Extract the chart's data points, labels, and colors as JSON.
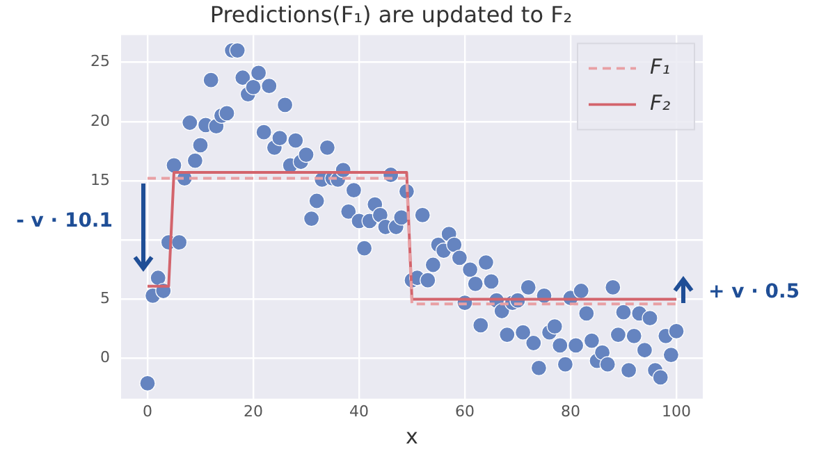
{
  "chart_data": {
    "type": "scatter",
    "title": "Predictions(F₁) are updated to F₂",
    "xlabel": "x",
    "xlim": [
      -5,
      105
    ],
    "ylim": [
      -3.4,
      27.3
    ],
    "xticks": [
      0,
      20,
      40,
      60,
      80,
      100
    ],
    "yticks": [
      0,
      5,
      {
        "value": 10,
        "label": null
      },
      15,
      20,
      25
    ],
    "grid": true,
    "legend": "top right",
    "annotations": [
      "- v · 10.1",
      "+ v · 0.5"
    ],
    "series": [
      {
        "type": "line",
        "name": "F₁",
        "color": "#e8a0a4",
        "line_style": "dashed",
        "marker": "none",
        "x": [
          0,
          49,
          50,
          100
        ],
        "values": [
          15.2,
          15.2,
          4.6,
          4.6
        ]
      },
      {
        "type": "line",
        "name": "F₂",
        "color": "#d3646c",
        "line_style": "solid",
        "marker": "none",
        "x": [
          0,
          4,
          5,
          49,
          50,
          100
        ],
        "values": [
          6.1,
          6.1,
          15.7,
          15.7,
          5.0,
          5.0
        ]
      },
      {
        "color": "#6584c0",
        "marker": "circle",
        "x": [
          0,
          1,
          2,
          3,
          4,
          5,
          6,
          7,
          8,
          9,
          10,
          11,
          12,
          13,
          14,
          15,
          16,
          17,
          18,
          19,
          20,
          21,
          22,
          23,
          24,
          25,
          26,
          27,
          28,
          29,
          30,
          31,
          32,
          33,
          34,
          35,
          36,
          37,
          38,
          39,
          40,
          41,
          42,
          43,
          44,
          45,
          46,
          47,
          48,
          49,
          50,
          51,
          52,
          53,
          54,
          55,
          56,
          57,
          58,
          59,
          60,
          61,
          62,
          63,
          64,
          65,
          66,
          67,
          68,
          69,
          70,
          71,
          72,
          73,
          74,
          75,
          76,
          77,
          78,
          79,
          80,
          81,
          82,
          83,
          84,
          85,
          86,
          87,
          88,
          89,
          90,
          91,
          92,
          93,
          94,
          95,
          96,
          97,
          98,
          99,
          100
        ],
        "values": [
          -2.1,
          5.3,
          6.8,
          5.7,
          9.8,
          16.3,
          9.8,
          15.2,
          19.9,
          16.7,
          18.0,
          19.7,
          23.5,
          19.6,
          20.5,
          20.7,
          26.0,
          26.0,
          23.7,
          22.3,
          22.9,
          24.1,
          19.1,
          23.0,
          17.8,
          18.6,
          21.4,
          16.3,
          18.4,
          16.6,
          17.2,
          11.8,
          13.3,
          15.1,
          17.8,
          15.2,
          15.1,
          15.9,
          12.4,
          14.2,
          11.6,
          9.3,
          11.6,
          13.0,
          12.1,
          11.1,
          15.5,
          11.1,
          11.9,
          14.1,
          6.6,
          6.8,
          12.1,
          6.6,
          7.9,
          9.6,
          9.1,
          10.5,
          9.6,
          8.5,
          4.7,
          7.5,
          6.3,
          2.8,
          8.1,
          6.5,
          4.9,
          4.0,
          2.0,
          4.7,
          4.9,
          2.2,
          6.0,
          1.3,
          -0.8,
          5.3,
          2.2,
          2.7,
          1.1,
          -0.5,
          5.1,
          1.1,
          5.7,
          3.8,
          1.5,
          -0.2,
          0.5,
          -0.5,
          6.0,
          2.0,
          3.9,
          -1.0,
          1.9,
          3.8,
          0.7,
          3.4,
          -1.0,
          -1.6,
          1.9,
          0.3,
          2.3
        ]
      }
    ]
  }
}
